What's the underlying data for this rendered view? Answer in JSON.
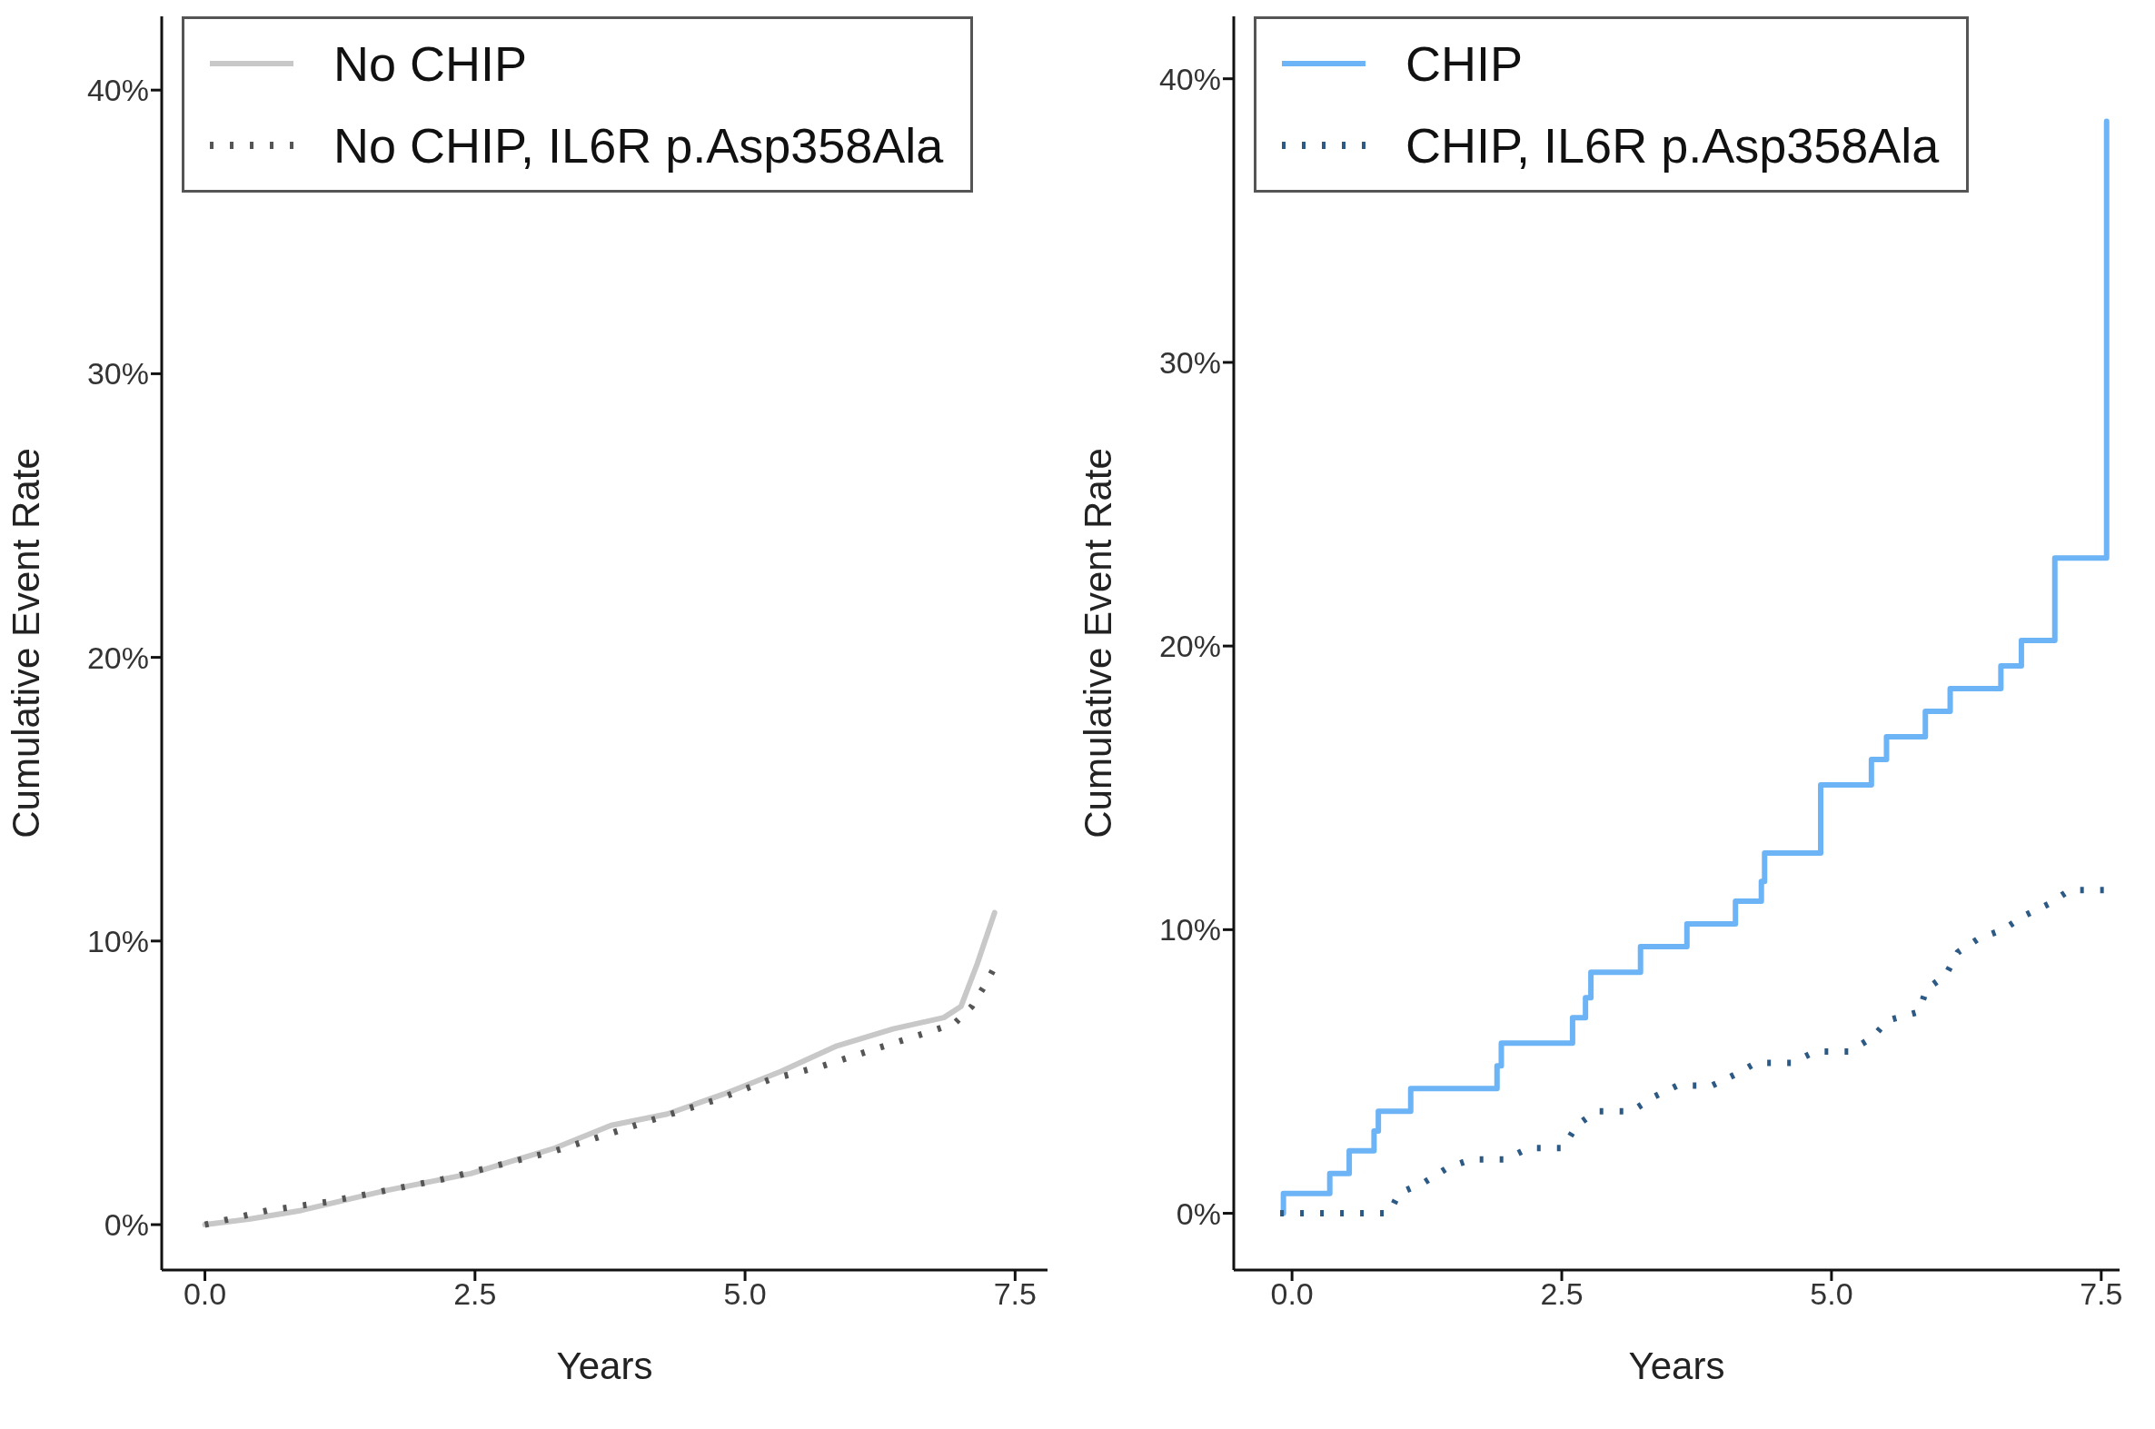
{
  "chart_data": [
    {
      "type": "line",
      "xlabel": "Years",
      "ylabel": "Cumulative Event Rate",
      "xlim": [
        -0.4,
        7.8
      ],
      "ylim": [
        -1.6,
        42.6
      ],
      "xticks": [
        {
          "value": 0,
          "label": "0.0"
        },
        {
          "value": 2.5,
          "label": "2.5"
        },
        {
          "value": 5,
          "label": "5.0"
        },
        {
          "value": 7.5,
          "label": "7.5"
        }
      ],
      "yticks": [
        {
          "value": 0,
          "label": "0%"
        },
        {
          "value": 10,
          "label": "10%"
        },
        {
          "value": 20,
          "label": "20%"
        },
        {
          "value": 30,
          "label": "30%"
        },
        {
          "value": 40,
          "label": "40%"
        }
      ],
      "grid": false,
      "legend": "top left",
      "marker": "none",
      "series": [
        {
          "name": "No CHIP",
          "color": "#c8c8c8",
          "line_style": "solid",
          "x": [
            0,
            0.42,
            0.89,
            1.67,
            2.46,
            3.24,
            3.76,
            4.28,
            4.8,
            5.33,
            5.85,
            6.37,
            6.84,
            7.0,
            7.15,
            7.31
          ],
          "values": [
            0,
            0.2,
            0.5,
            1.2,
            1.8,
            2.7,
            3.5,
            3.9,
            4.6,
            5.4,
            6.3,
            6.9,
            7.3,
            7.7,
            9.2,
            11.0
          ]
        },
        {
          "name": "No CHIP, IL6R p.Asp358Ala",
          "color": "#555555",
          "line_style": "dotted",
          "x": [
            0,
            0.58,
            1.13,
            1.67,
            2.2,
            2.72,
            3.24,
            3.74,
            4.23,
            4.73,
            5.22,
            5.72,
            6.21,
            6.71,
            6.94,
            7.1,
            7.23,
            7.34
          ],
          "values": [
            0,
            0.5,
            0.8,
            1.2,
            1.6,
            2.1,
            2.6,
            3.2,
            3.8,
            4.4,
            5.1,
            5.6,
            6.2,
            6.8,
            7.1,
            7.7,
            8.5,
            9.3
          ]
        }
      ]
    },
    {
      "type": "line",
      "xlabel": "Years",
      "ylabel": "Cumulative Event Rate",
      "xlim": [
        -0.54,
        7.67
      ],
      "ylim": [
        -2,
        42.2
      ],
      "xticks": [
        {
          "value": 0,
          "label": "0.0"
        },
        {
          "value": 2.5,
          "label": "2.5"
        },
        {
          "value": 5,
          "label": "5.0"
        },
        {
          "value": 7.5,
          "label": "7.5"
        }
      ],
      "yticks": [
        {
          "value": 0,
          "label": "0%"
        },
        {
          "value": 10,
          "label": "10%"
        },
        {
          "value": 20,
          "label": "20%"
        },
        {
          "value": 30,
          "label": "30%"
        },
        {
          "value": 40,
          "label": "40%"
        }
      ],
      "grid": false,
      "legend": "top left",
      "marker": "none",
      "series": [
        {
          "name": "CHIP",
          "type": "step",
          "color": "#6cb4f5",
          "line_style": "solid",
          "x": [
            -0.08,
            -0.08,
            0.35,
            0.53,
            0.76,
            0.8,
            1.1,
            1.9,
            1.94,
            2.6,
            2.72,
            2.77,
            3.23,
            3.66,
            4.11,
            4.35,
            4.38,
            4.9,
            5.37,
            5.51,
            5.87,
            6.1,
            6.57,
            6.76,
            7.07,
            7.55,
            7.55
          ],
          "values": [
            0,
            0.7,
            1.4,
            2.2,
            2.9,
            3.6,
            4.4,
            5.2,
            6.0,
            6.9,
            7.6,
            8.5,
            9.4,
            10.2,
            11.0,
            11.7,
            12.7,
            15.1,
            16.0,
            16.8,
            17.7,
            18.5,
            19.3,
            20.2,
            23.1,
            23.1,
            38.5
          ]
        },
        {
          "name": "CHIP,  IL6R p.Asp358Ala",
          "color": "#2c5a85",
          "line_style": "dotted",
          "x": [
            -0.11,
            0.9,
            0.99,
            1.23,
            1.44,
            1.66,
            1.98,
            2.19,
            2.51,
            2.64,
            2.82,
            3.15,
            3.35,
            3.57,
            3.89,
            4.11,
            4.3,
            4.63,
            4.85,
            5.16,
            5.38,
            5.52,
            5.81,
            5.88,
            6.06,
            6.17,
            6.37,
            6.59,
            6.79,
            7.01,
            7.21,
            7.53
          ],
          "values": [
            0,
            0,
            0.7,
            1.1,
            1.6,
            1.9,
            1.9,
            2.3,
            2.3,
            3.1,
            3.6,
            3.6,
            4.1,
            4.5,
            4.5,
            4.9,
            5.3,
            5.3,
            5.7,
            5.7,
            6.2,
            6.8,
            7.1,
            7.9,
            8.4,
            9.2,
            9.7,
            10.0,
            10.5,
            10.9,
            11.4,
            11.4
          ]
        }
      ]
    }
  ]
}
